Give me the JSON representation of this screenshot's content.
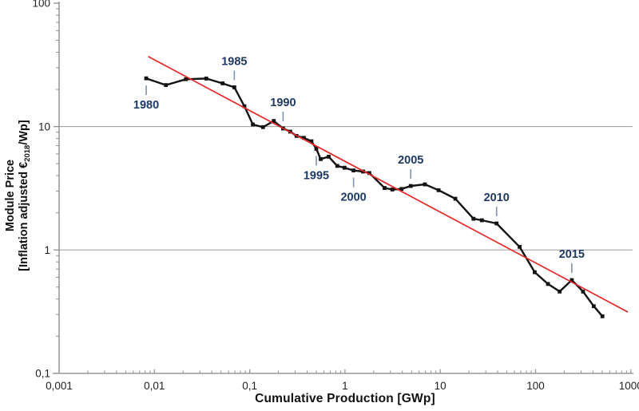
{
  "chart_data": {
    "type": "line",
    "description": "PV module price experience curve (log-log): historic module prices vs cumulative production with learning-curve trend line",
    "xlabel": "Cumulative Production [GWp]",
    "ylabel_line1": "Module Price",
    "ylabel_line2_pre": "[Inflation adjusted €",
    "ylabel_line2_sub": "2018",
    "ylabel_line2_post": "/Wp]",
    "x_scale": "log",
    "y_scale": "log",
    "xlim": [
      0.001,
      1000
    ],
    "ylim": [
      0.1,
      100
    ],
    "x_ticks": [
      {
        "v": 0.001,
        "label": "0,001"
      },
      {
        "v": 0.01,
        "label": "0,01"
      },
      {
        "v": 0.1,
        "label": "0,1"
      },
      {
        "v": 1,
        "label": "1"
      },
      {
        "v": 10,
        "label": "10"
      },
      {
        "v": 100,
        "label": "100"
      },
      {
        "v": 1000,
        "label": "1000"
      }
    ],
    "y_ticks": [
      {
        "v": 100,
        "label": "100"
      },
      {
        "v": 10,
        "label": "10"
      },
      {
        "v": 1,
        "label": "1"
      },
      {
        "v": 0.1,
        "label": "0,1"
      }
    ],
    "gridlines_y": [
      10,
      1
    ],
    "legend": "none",
    "series": [
      {
        "name": "historic module price",
        "color": "#131313",
        "marker": "square",
        "points": [
          [
            0.0082,
            24.6
          ],
          [
            0.0132,
            21.7
          ],
          [
            0.0214,
            24.2
          ],
          [
            0.035,
            24.5
          ],
          [
            0.052,
            22.4
          ],
          [
            0.069,
            20.8
          ],
          [
            0.088,
            14.6
          ],
          [
            0.108,
            10.4
          ],
          [
            0.138,
            9.9
          ],
          [
            0.179,
            11.1
          ],
          [
            0.224,
            9.65
          ],
          [
            0.266,
            9.1
          ],
          [
            0.31,
            8.4
          ],
          [
            0.37,
            8.1
          ],
          [
            0.445,
            7.6
          ],
          [
            0.5,
            6.6
          ],
          [
            0.556,
            5.45
          ],
          [
            0.675,
            5.7
          ],
          [
            0.83,
            4.8
          ],
          [
            0.99,
            4.64
          ],
          [
            1.23,
            4.41
          ],
          [
            1.55,
            4.32
          ],
          [
            1.8,
            4.2
          ],
          [
            2.6,
            3.18
          ],
          [
            3.14,
            3.09
          ],
          [
            3.92,
            3.12
          ],
          [
            4.9,
            3.3
          ],
          [
            6.9,
            3.4
          ],
          [
            9.6,
            3.05
          ],
          [
            14.4,
            2.6
          ],
          [
            22.3,
            1.79
          ],
          [
            27.3,
            1.74
          ],
          [
            39,
            1.64
          ],
          [
            68,
            1.06
          ],
          [
            98,
            0.66
          ],
          [
            135,
            0.53
          ],
          [
            179,
            0.46
          ],
          [
            240,
            0.57
          ],
          [
            315,
            0.46
          ],
          [
            408,
            0.35
          ],
          [
            503,
            0.29
          ]
        ]
      }
    ],
    "trend_line": {
      "name": "learning curve trend",
      "color": "#e32726",
      "from": [
        0.0086,
        37.0
      ],
      "to": [
        930,
        0.314
      ]
    },
    "annotations": [
      {
        "year": "1980",
        "x": 0.0082,
        "y": 24.6,
        "side": "below"
      },
      {
        "year": "1985",
        "x": 0.069,
        "y": 20.8,
        "side": "above"
      },
      {
        "year": "1990",
        "x": 0.224,
        "y": 9.65,
        "side": "above"
      },
      {
        "year": "1995",
        "x": 0.5,
        "y": 6.6,
        "side": "below"
      },
      {
        "year": "2000",
        "x": 1.23,
        "y": 4.41,
        "side": "below"
      },
      {
        "year": "2005",
        "x": 4.9,
        "y": 3.3,
        "side": "above"
      },
      {
        "year": "2010",
        "x": 39,
        "y": 1.64,
        "side": "above"
      },
      {
        "year": "2015",
        "x": 240,
        "y": 0.57,
        "side": "above"
      }
    ],
    "colors": {
      "background": "#ffffff",
      "grid": "#a6a6a6",
      "axis": "#8f8f8f",
      "tick_text": "#1f1f1f",
      "annotation_text": "#1f3864",
      "annotation_tick": "#8093b0"
    }
  }
}
